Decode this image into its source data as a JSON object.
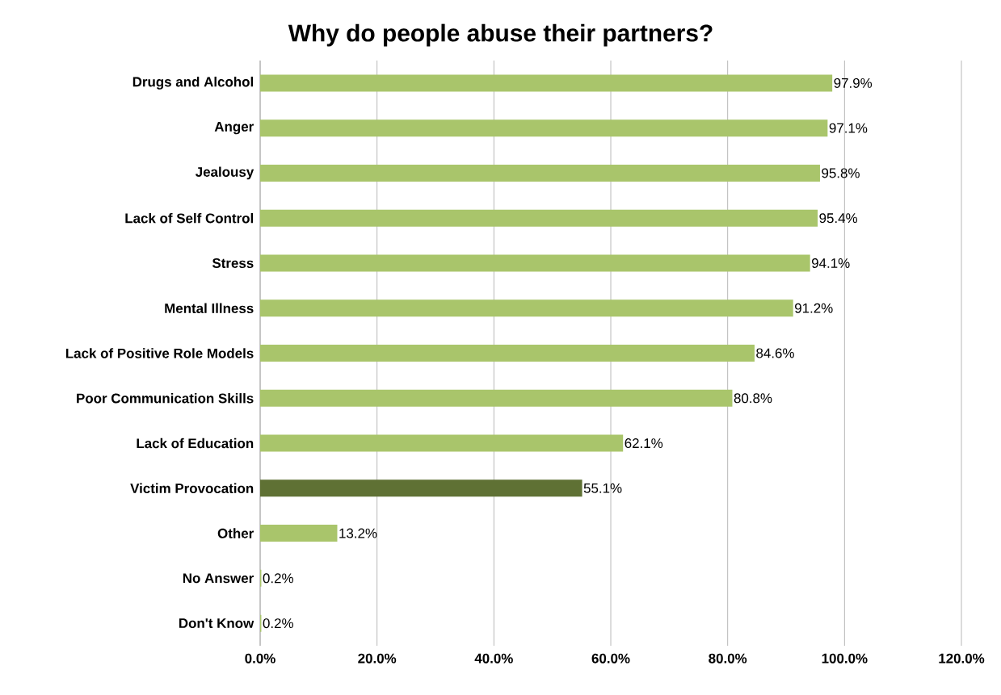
{
  "chart_data": {
    "type": "bar",
    "orientation": "horizontal",
    "title": "Why do people abuse their partners?",
    "categories": [
      "Drugs and Alcohol",
      "Anger",
      "Jealousy",
      "Lack of Self Control",
      "Stress",
      "Mental Illness",
      "Lack of Positive Role Models",
      "Poor Communication Skills",
      "Lack of Education",
      "Victim Provocation",
      "Other",
      "No Answer",
      "Don't Know"
    ],
    "values": [
      97.9,
      97.1,
      95.8,
      95.4,
      94.1,
      91.2,
      84.6,
      80.8,
      62.1,
      55.1,
      13.2,
      0.2,
      0.2
    ],
    "value_labels": [
      "97.9%",
      "97.1%",
      "95.8%",
      "95.4%",
      "94.1%",
      "91.2%",
      "84.6%",
      "80.8%",
      "62.1%",
      "55.1%",
      "13.2%",
      "0.2%",
      "0.2%"
    ],
    "colors": [
      "#a9c56b",
      "#a9c56b",
      "#a9c56b",
      "#a9c56b",
      "#a9c56b",
      "#a9c56b",
      "#a9c56b",
      "#a9c56b",
      "#a9c56b",
      "#5f7134",
      "#a9c56b",
      "#a9c56b",
      "#a9c56b"
    ],
    "xlim": [
      0,
      120
    ],
    "xticks": [
      {
        "value": 0,
        "label": "0.0%"
      },
      {
        "value": 20,
        "label": "20.0%"
      },
      {
        "value": 40,
        "label": "40.0%"
      },
      {
        "value": 60,
        "label": "60.0%"
      },
      {
        "value": 80,
        "label": "80.0%"
      },
      {
        "value": 100,
        "label": "100.0%"
      },
      {
        "value": 120,
        "label": "120.0%"
      }
    ],
    "grid": "x"
  }
}
